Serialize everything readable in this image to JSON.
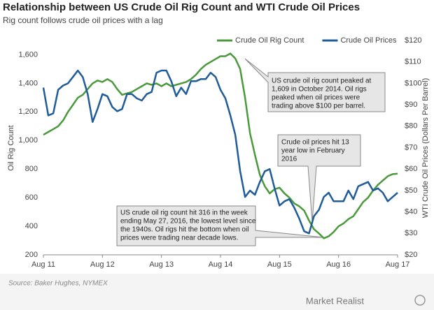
{
  "chart_data": {
    "type": "line",
    "title": "Relationship between US Crude Oil Rig Count and WTI Crude Oil Prices",
    "subtitle": "Rig count follows crude oil prices with a lag",
    "ylabel": "Oil Rig Count",
    "y2label": "WTI Crude Oil Prices (Dollars Per Barrel)",
    "source": "Source: Baker Hughes, NYMEX",
    "brand": "Market Realist",
    "categories": [
      "Aug 11",
      null,
      null,
      null,
      null,
      null,
      null,
      null,
      null,
      null,
      null,
      null,
      "Aug 12",
      null,
      null,
      null,
      null,
      null,
      null,
      null,
      null,
      null,
      null,
      null,
      "Aug 13",
      null,
      null,
      null,
      null,
      null,
      null,
      null,
      null,
      null,
      null,
      null,
      "Aug 14",
      null,
      null,
      null,
      null,
      null,
      null,
      null,
      null,
      null,
      null,
      null,
      "Aug 15",
      null,
      null,
      null,
      null,
      null,
      null,
      null,
      null,
      null,
      null,
      null,
      "Aug 16",
      null,
      null,
      null,
      null,
      null,
      null,
      null,
      null,
      null,
      null,
      null,
      "Aug 17"
    ],
    "series": [
      {
        "name": "Crude Oil Rig Count",
        "color": "#4a9a3c",
        "axis": "y",
        "values": [
          1040,
          1060,
          1080,
          1100,
          1140,
          1200,
          1250,
          1300,
          1320,
          1360,
          1400,
          1420,
          1410,
          1430,
          1410,
          1360,
          1320,
          1330,
          1340,
          1360,
          1380,
          1400,
          1390,
          1400,
          1380,
          1400,
          1380,
          1390,
          1400,
          1410,
          1430,
          1460,
          1500,
          1530,
          1550,
          1570,
          1590,
          1590,
          1609,
          1575,
          1500,
          1300,
          1050,
          900,
          760,
          680,
          630,
          660,
          670,
          630,
          600,
          560,
          540,
          510,
          440,
          380,
          350,
          316,
          330,
          360,
          400,
          420,
          450,
          470,
          520,
          570,
          600,
          650,
          690,
          720,
          750,
          765,
          768
        ]
      },
      {
        "name": "Crude Oil Prices",
        "color": "#1f5c99",
        "axis": "y2",
        "values": [
          98,
          85,
          86,
          97,
          99,
          100,
          103,
          106,
          103,
          95,
          82,
          88,
          95,
          94,
          89,
          87,
          88,
          95,
          95,
          93,
          92,
          95,
          96,
          105,
          106,
          106,
          101,
          94,
          98,
          95,
          101,
          101,
          102,
          102,
          105,
          103,
          97,
          93,
          85,
          76,
          59,
          47,
          50,
          48,
          54,
          59,
          60,
          51,
          43,
          45,
          46,
          42,
          37,
          31,
          30,
          38,
          41,
          47,
          49,
          45,
          45,
          45,
          50,
          46,
          52,
          53,
          54,
          50,
          51,
          49,
          45,
          47,
          49
        ]
      }
    ],
    "ylim": [
      200,
      1700
    ],
    "yticks": [
      {
        "value": 200,
        "label": "200"
      },
      {
        "value": 400,
        "label": "400"
      },
      {
        "value": 600,
        "label": "600"
      },
      {
        "value": 800,
        "label": "800"
      },
      {
        "value": 1000,
        "label": "1,000"
      },
      {
        "value": 1200,
        "label": "1,200"
      },
      {
        "value": 1400,
        "label": "1,400"
      },
      {
        "value": 1600,
        "label": "1,600"
      }
    ],
    "y2lim": [
      20,
      120
    ],
    "y2ticks": [
      {
        "value": 20,
        "label": "$20"
      },
      {
        "value": 30,
        "label": "$30"
      },
      {
        "value": 40,
        "label": "$40"
      },
      {
        "value": 50,
        "label": "$50"
      },
      {
        "value": 60,
        "label": "$60"
      },
      {
        "value": 70,
        "label": "$70"
      },
      {
        "value": 80,
        "label": "$80"
      },
      {
        "value": 90,
        "label": "$90"
      },
      {
        "value": 100,
        "label": "$100"
      },
      {
        "value": 110,
        "label": "$110"
      },
      {
        "value": 120,
        "label": "$120"
      }
    ],
    "grid": false,
    "legend": "top-right",
    "annotations": [
      {
        "lines": [
          "US crude oil rig count peaked at",
          "1,609 in October 2014.  Oil rigs",
          "peaked when oil prices were",
          "trading above $100 per barrel."
        ]
      },
      {
        "lines": [
          "Crude oil prices hit 13",
          "year low in February",
          "2016"
        ]
      },
      {
        "lines": [
          "US crude oil rig count hit 316 in the week",
          "ending May 27, 2016, the lowest level since",
          "the 1940s. Oil rigs hit the bottom when oil",
          "prices were trading near decade lows."
        ]
      }
    ]
  }
}
